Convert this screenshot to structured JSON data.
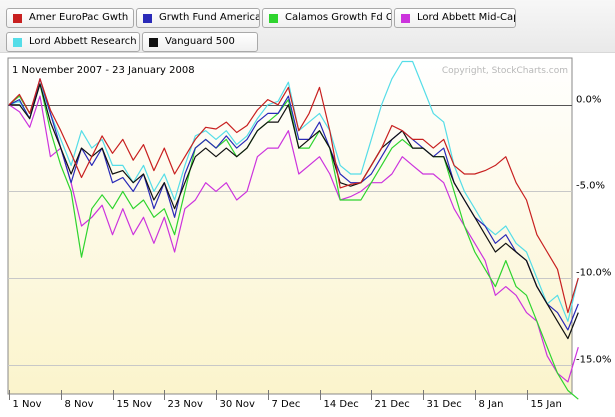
{
  "chart_data": {
    "type": "line",
    "subtitle": "1 November 2007 - 23 January 2008",
    "watermark": "Copyright, StockCharts.com",
    "y_ticks": [
      "0.0%",
      "-5.0%",
      "-10.0%",
      "-15.0%"
    ],
    "y_tick_values": [
      0,
      -5,
      -10,
      -15
    ],
    "ylim": [
      -16.7,
      2.7
    ],
    "x_tick_labels": [
      "1 Nov",
      "8 Nov",
      "15 Nov",
      "23 Nov",
      "30 Nov",
      "7 Dec",
      "14 Dec",
      "21 Dec",
      "31 Dec",
      "8 Jan",
      "15 Jan"
    ],
    "x_tick_index": [
      0,
      5,
      10,
      15,
      20,
      25,
      30,
      35,
      40,
      45,
      50
    ],
    "n_points": 56,
    "series": [
      {
        "name": "Amer EuroPac Gwth",
        "color": "#c82020",
        "values": [
          0,
          0.6,
          -0.5,
          1.5,
          -0.3,
          -1.5,
          -2.8,
          -4.2,
          -3.0,
          -1.8,
          -2.8,
          -2.0,
          -3.2,
          -2.3,
          -3.8,
          -2.5,
          -4.0,
          -3.0,
          -2.0,
          -1.3,
          -1.4,
          -1.0,
          -1.6,
          -1.2,
          -0.3,
          0.3,
          0,
          1.0,
          -1.5,
          -0.5,
          1.0,
          -1.5,
          -4.8,
          -4.6,
          -4.5,
          -3.5,
          -2.5,
          -1.2,
          -1.5,
          -2.0,
          -2.0,
          -2.5,
          -2.0,
          -3.5,
          -4.0,
          -4.0,
          -3.8,
          -3.5,
          -3.0,
          -4.5,
          -5.5,
          -7.5,
          -8.5,
          -9.5,
          -12.0,
          -10.0
        ]
      },
      {
        "name": "Grwth Fund America",
        "color": "#2a2ab8",
        "values": [
          0,
          0.3,
          -0.8,
          1.5,
          -0.5,
          -2.5,
          -4.5,
          -2.5,
          -3.5,
          -2.5,
          -4.5,
          -4.2,
          -5.0,
          -4.0,
          -6.0,
          -4.5,
          -6.5,
          -4.0,
          -2.5,
          -2.0,
          -2.5,
          -1.8,
          -2.5,
          -2.0,
          -1.0,
          -0.5,
          -0.5,
          0.5,
          -2.0,
          -2.0,
          -1.0,
          -2.5,
          -4.0,
          -4.5,
          -4.5,
          -4.0,
          -3.0,
          -2.0,
          -1.5,
          -2.0,
          -2.5,
          -3.0,
          -2.5,
          -4.5,
          -5.5,
          -6.5,
          -7.0,
          -8.0,
          -7.5,
          -8.5,
          -9.0,
          -10.5,
          -11.5,
          -12.0,
          -13.0,
          -11.5
        ]
      },
      {
        "name": "Calamos Growth Fd Cl",
        "color": "#2ed42e",
        "values": [
          0,
          0.5,
          -0.5,
          1.2,
          -1.5,
          -3.5,
          -5.0,
          -8.8,
          -6.0,
          -5.2,
          -6.0,
          -5.0,
          -6.0,
          -5.5,
          -6.5,
          -6.0,
          -7.5,
          -5.0,
          -2.5,
          -2.0,
          -2.5,
          -2.0,
          -3.0,
          -2.5,
          -1.5,
          -1.0,
          -0.5,
          0.3,
          -2.5,
          -2.5,
          -1.5,
          -2.5,
          -5.5,
          -5.5,
          -5.5,
          -4.5,
          -3.5,
          -2.5,
          -2.0,
          -2.5,
          -2.5,
          -3.0,
          -3.0,
          -5.0,
          -7.0,
          -8.5,
          -9.5,
          -10.5,
          -9.0,
          -10.5,
          -11.0,
          -12.5,
          -14.0,
          -15.5,
          -16.5,
          -17.0
        ]
      },
      {
        "name": "Lord Abbett Mid-Cap",
        "color": "#cc33dd",
        "values": [
          0,
          -0.4,
          -1.3,
          0.5,
          -3.0,
          -2.5,
          -4.5,
          -7.0,
          -6.5,
          -5.8,
          -7.5,
          -6.0,
          -7.5,
          -6.5,
          -8.0,
          -6.5,
          -8.5,
          -6.0,
          -5.5,
          -4.5,
          -5.0,
          -4.5,
          -5.5,
          -5.0,
          -3.0,
          -2.5,
          -2.5,
          -1.5,
          -4.0,
          -3.5,
          -3.0,
          -4.0,
          -5.5,
          -5.3,
          -5.0,
          -4.5,
          -4.5,
          -4.0,
          -3.0,
          -3.5,
          -4.0,
          -4.0,
          -4.5,
          -6.0,
          -7.0,
          -8.0,
          -9.0,
          -11.0,
          -10.5,
          -11.0,
          -12.0,
          -12.5,
          -14.5,
          -15.5,
          -16.0,
          -14.0
        ]
      },
      {
        "name": "Lord Abbett Research",
        "color": "#55dde8",
        "values": [
          0,
          0.2,
          -0.8,
          1.2,
          -0.5,
          -2.0,
          -3.5,
          -1.5,
          -2.5,
          -2.0,
          -3.5,
          -3.5,
          -4.5,
          -3.5,
          -5.0,
          -4.0,
          -5.5,
          -3.5,
          -1.8,
          -1.5,
          -2.0,
          -1.5,
          -2.3,
          -1.8,
          -0.8,
          0,
          0.2,
          1.3,
          -1.5,
          -1.0,
          -0.5,
          -1.5,
          -3.5,
          -4.0,
          -4.0,
          -2.0,
          0,
          1.5,
          2.5,
          2.5,
          1.0,
          -0.5,
          -1.0,
          -3.5,
          -5.0,
          -6.0,
          -7.0,
          -7.5,
          -7.0,
          -8.0,
          -8.5,
          -10.0,
          -11.5,
          -11.0,
          -12.5,
          -10.0
        ]
      },
      {
        "name": "Vanguard 500",
        "color": "#101010",
        "values": [
          0,
          0,
          -0.8,
          1.2,
          -1.0,
          -2.5,
          -4.0,
          -2.5,
          -3.0,
          -2.5,
          -4.0,
          -3.8,
          -4.5,
          -4.0,
          -5.5,
          -4.5,
          -6.0,
          -4.5,
          -3.0,
          -2.5,
          -3.0,
          -2.5,
          -3.0,
          -2.5,
          -1.5,
          -1.0,
          -1.0,
          0,
          -2.5,
          -2.0,
          -1.5,
          -2.5,
          -4.5,
          -4.7,
          -4.5,
          -3.5,
          -2.5,
          -2.0,
          -1.5,
          -2.5,
          -2.5,
          -3.0,
          -3.0,
          -4.5,
          -5.5,
          -6.5,
          -7.5,
          -8.5,
          -8.0,
          -8.5,
          -9.0,
          -10.5,
          -11.5,
          -12.5,
          -13.5,
          -12.0
        ]
      }
    ]
  }
}
